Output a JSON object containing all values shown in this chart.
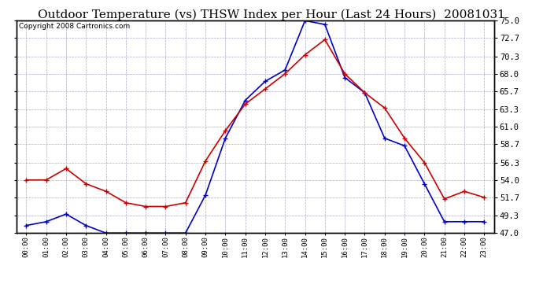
{
  "title": "Outdoor Temperature (vs) THSW Index per Hour (Last 24 Hours)  20081031",
  "copyright": "Copyright 2008 Cartronics.com",
  "x_labels": [
    "00:00",
    "01:00",
    "02:00",
    "03:00",
    "04:00",
    "05:00",
    "06:00",
    "07:00",
    "08:00",
    "09:00",
    "10:00",
    "11:00",
    "12:00",
    "13:00",
    "14:00",
    "15:00",
    "16:00",
    "17:00",
    "18:00",
    "19:00",
    "20:00",
    "21:00",
    "22:00",
    "23:00"
  ],
  "temp_data": [
    54.0,
    54.0,
    55.5,
    53.5,
    52.5,
    51.0,
    50.5,
    50.5,
    51.0,
    56.5,
    60.5,
    64.0,
    66.0,
    68.0,
    70.5,
    72.5,
    68.0,
    65.5,
    63.5,
    59.5,
    56.3,
    51.5,
    52.5,
    51.7
  ],
  "thsw_data": [
    48.0,
    48.5,
    49.5,
    48.0,
    47.0,
    47.0,
    47.0,
    47.0,
    47.0,
    52.0,
    59.5,
    64.5,
    67.0,
    68.5,
    75.0,
    74.5,
    67.5,
    65.5,
    59.5,
    58.5,
    53.5,
    48.5,
    48.5,
    48.5
  ],
  "ylim": [
    47.0,
    75.0
  ],
  "yticks": [
    47.0,
    49.3,
    51.7,
    54.0,
    56.3,
    58.7,
    61.0,
    63.3,
    65.7,
    68.0,
    70.3,
    72.7,
    75.0
  ],
  "temp_color": "#cc0000",
  "thsw_color": "#0000cc",
  "bg_color": "#ffffff",
  "plot_bg_color": "#ffffff",
  "grid_color": "#aaaacc",
  "title_fontsize": 11,
  "copyright_fontsize": 6.5
}
